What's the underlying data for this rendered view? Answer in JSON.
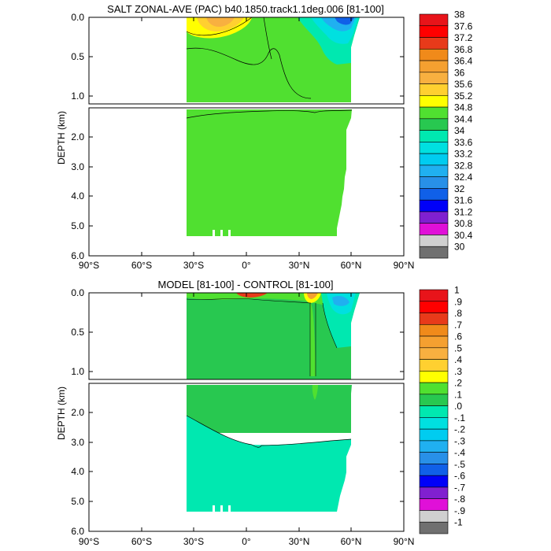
{
  "chart_data": [
    {
      "type": "heatmap",
      "title": "SALT ZONAL-AVE (PAC) b40.1850.track1.1deg.006 [81-100]",
      "ylabel": "DEPTH (km)",
      "xlabel": "",
      "x_ticks": [
        "90°S",
        "60°S",
        "30°S",
        "0°",
        "30°N",
        "60°N",
        "90°N"
      ],
      "y_ticks_upper": [
        "0.0",
        "0.5",
        "1.0"
      ],
      "y_ticks_lower": [
        "2.0",
        "3.0",
        "4.0",
        "5.0",
        "6.0"
      ],
      "xlim": [
        -90,
        90
      ],
      "ylim_upper_km": [
        0,
        1.1
      ],
      "ylim_lower_km": [
        1.1,
        6.0
      ],
      "colorbar_levels": [
        "38",
        "37.6",
        "37.2",
        "36.8",
        "36.4",
        "36",
        "35.6",
        "35.2",
        "34.8",
        "34.4",
        "34",
        "33.6",
        "33.2",
        "32.8",
        "32.4",
        "32",
        "31.6",
        "31.2",
        "30.8",
        "30.4",
        "30"
      ],
      "colors": [
        "#e8141a",
        "#ff0000",
        "#e83a1a",
        "#f08a1a",
        "#f5a030",
        "#f8b040",
        "#ffd030",
        "#ffff00",
        "#50e030",
        "#28c850",
        "#00e8b0",
        "#00e0e0",
        "#00ccf0",
        "#20b0f0",
        "#2890e8",
        "#1060e8",
        "#0000f8",
        "#8020d0",
        "#e010d8",
        "#d0d0d0",
        "#707070"
      ]
    },
    {
      "type": "heatmap",
      "title": "MODEL [81-100] - CONTROL [81-100]",
      "ylabel": "DEPTH (km)",
      "xlabel": "",
      "x_ticks": [
        "90°S",
        "60°S",
        "30°S",
        "0°",
        "30°N",
        "60°N",
        "90°N"
      ],
      "y_ticks_upper": [
        "0.0",
        "0.5",
        "1.0"
      ],
      "y_ticks_lower": [
        "2.0",
        "3.0",
        "4.0",
        "5.0",
        "6.0"
      ],
      "xlim": [
        -90,
        90
      ],
      "ylim_upper_km": [
        0,
        1.1
      ],
      "ylim_lower_km": [
        1.1,
        6.0
      ],
      "colorbar_levels": [
        "1",
        ".9",
        ".8",
        ".7",
        ".6",
        ".5",
        ".4",
        ".3",
        ".2",
        ".1",
        ".0",
        "-.1",
        "-.2",
        "-.3",
        "-.4",
        "-.5",
        "-.6",
        "-.7",
        "-.8",
        "-.9",
        "-1"
      ],
      "colors": [
        "#e8141a",
        "#ff0000",
        "#e83a1a",
        "#f08a1a",
        "#f5a030",
        "#f8b040",
        "#ffd030",
        "#ffff00",
        "#50e030",
        "#28c850",
        "#00e8b0",
        "#00e0e0",
        "#00ccf0",
        "#20b0f0",
        "#2890e8",
        "#1060e8",
        "#0000f8",
        "#8020d0",
        "#e010d8",
        "#d0d0d0",
        "#707070"
      ]
    }
  ]
}
